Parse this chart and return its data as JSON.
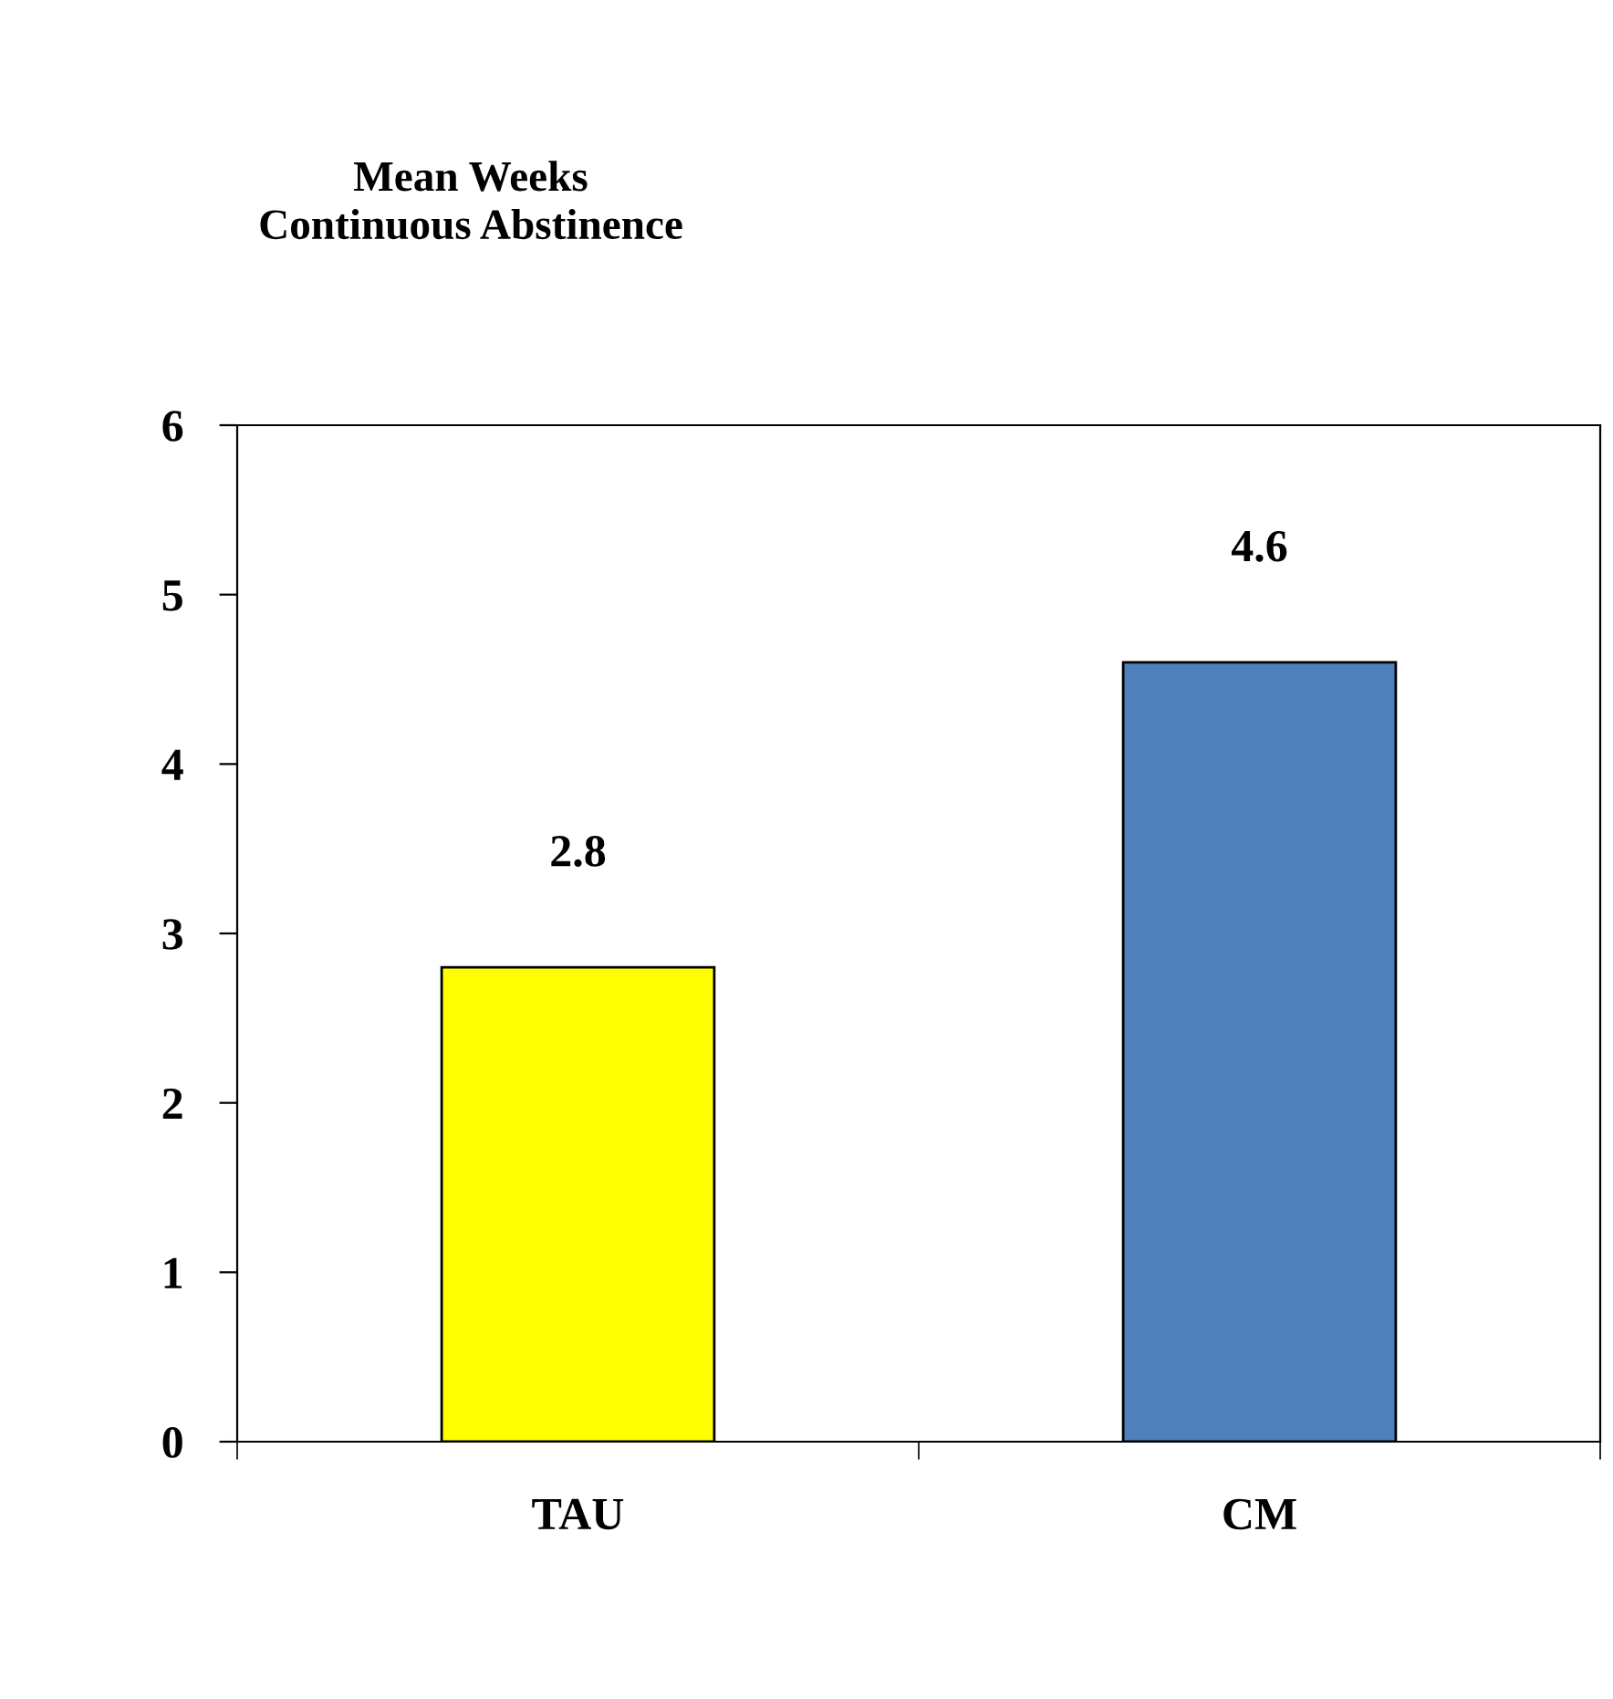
{
  "chart_data": {
    "type": "bar",
    "title": "Mean Weeks\nContinuous Abstinence",
    "categories": [
      "TAU",
      "CM"
    ],
    "values": [
      2.8,
      4.6
    ],
    "colors": [
      "#ffff00",
      "#4f81bd"
    ],
    "ylim": [
      0,
      6
    ],
    "yticks": [
      0,
      1,
      2,
      3,
      4,
      5,
      6
    ],
    "data_labels": true,
    "grid": false,
    "legend": false
  }
}
